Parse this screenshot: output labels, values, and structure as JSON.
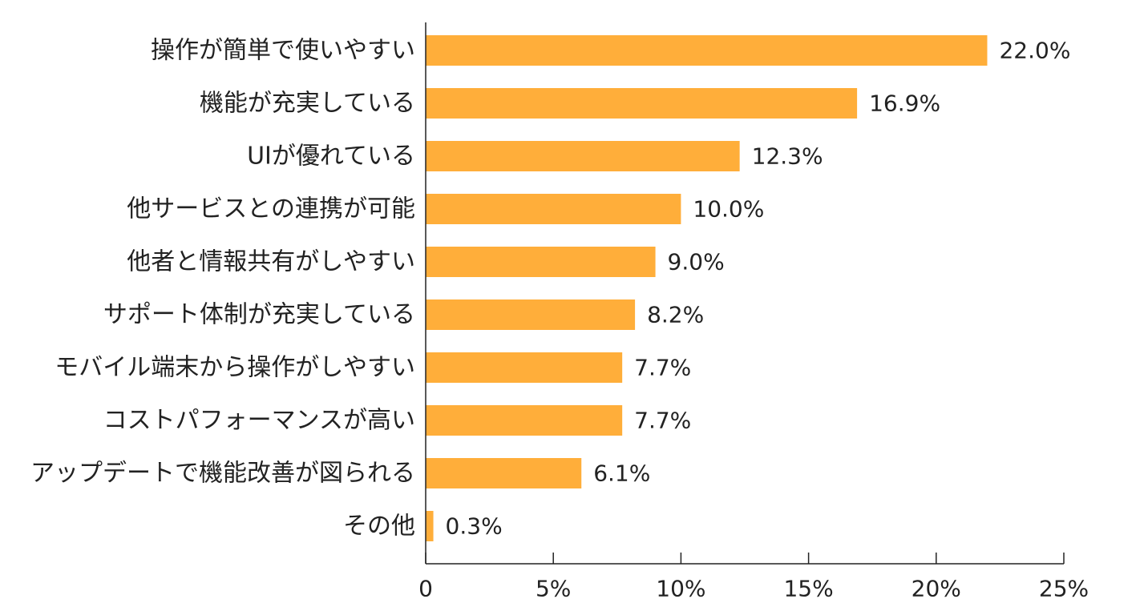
{
  "chart_data": {
    "type": "bar",
    "orientation": "horizontal",
    "title": "",
    "xlabel": "",
    "ylabel": "",
    "categories": [
      "操作が簡単で使いやすい",
      "機能が充実している",
      "UIが優れている",
      "他サービスとの連携が可能",
      "他者と情報共有がしやすい",
      "サポート体制が充実している",
      "モバイル端末から操作がしやすい",
      "コストパフォーマンスが高い",
      "アップデートで機能改善が図られる",
      "その他"
    ],
    "values": [
      22.0,
      16.9,
      12.3,
      10.0,
      9.0,
      8.2,
      7.7,
      7.7,
      6.1,
      0.3
    ],
    "value_labels": [
      "22.0%",
      "16.9%",
      "12.3%",
      "10.0%",
      "9.0%",
      "8.2%",
      "7.7%",
      "7.7%",
      "6.1%",
      "0.3%"
    ],
    "xlim": [
      0,
      25
    ],
    "x_ticks": [
      0,
      5,
      10,
      15,
      20,
      25
    ],
    "x_tick_labels": [
      "0",
      "5%",
      "10%",
      "15%",
      "20%",
      "25%"
    ],
    "grid": false,
    "legend": "none",
    "bar_color": "#FFAE3A",
    "axis_color": "#222222"
  }
}
